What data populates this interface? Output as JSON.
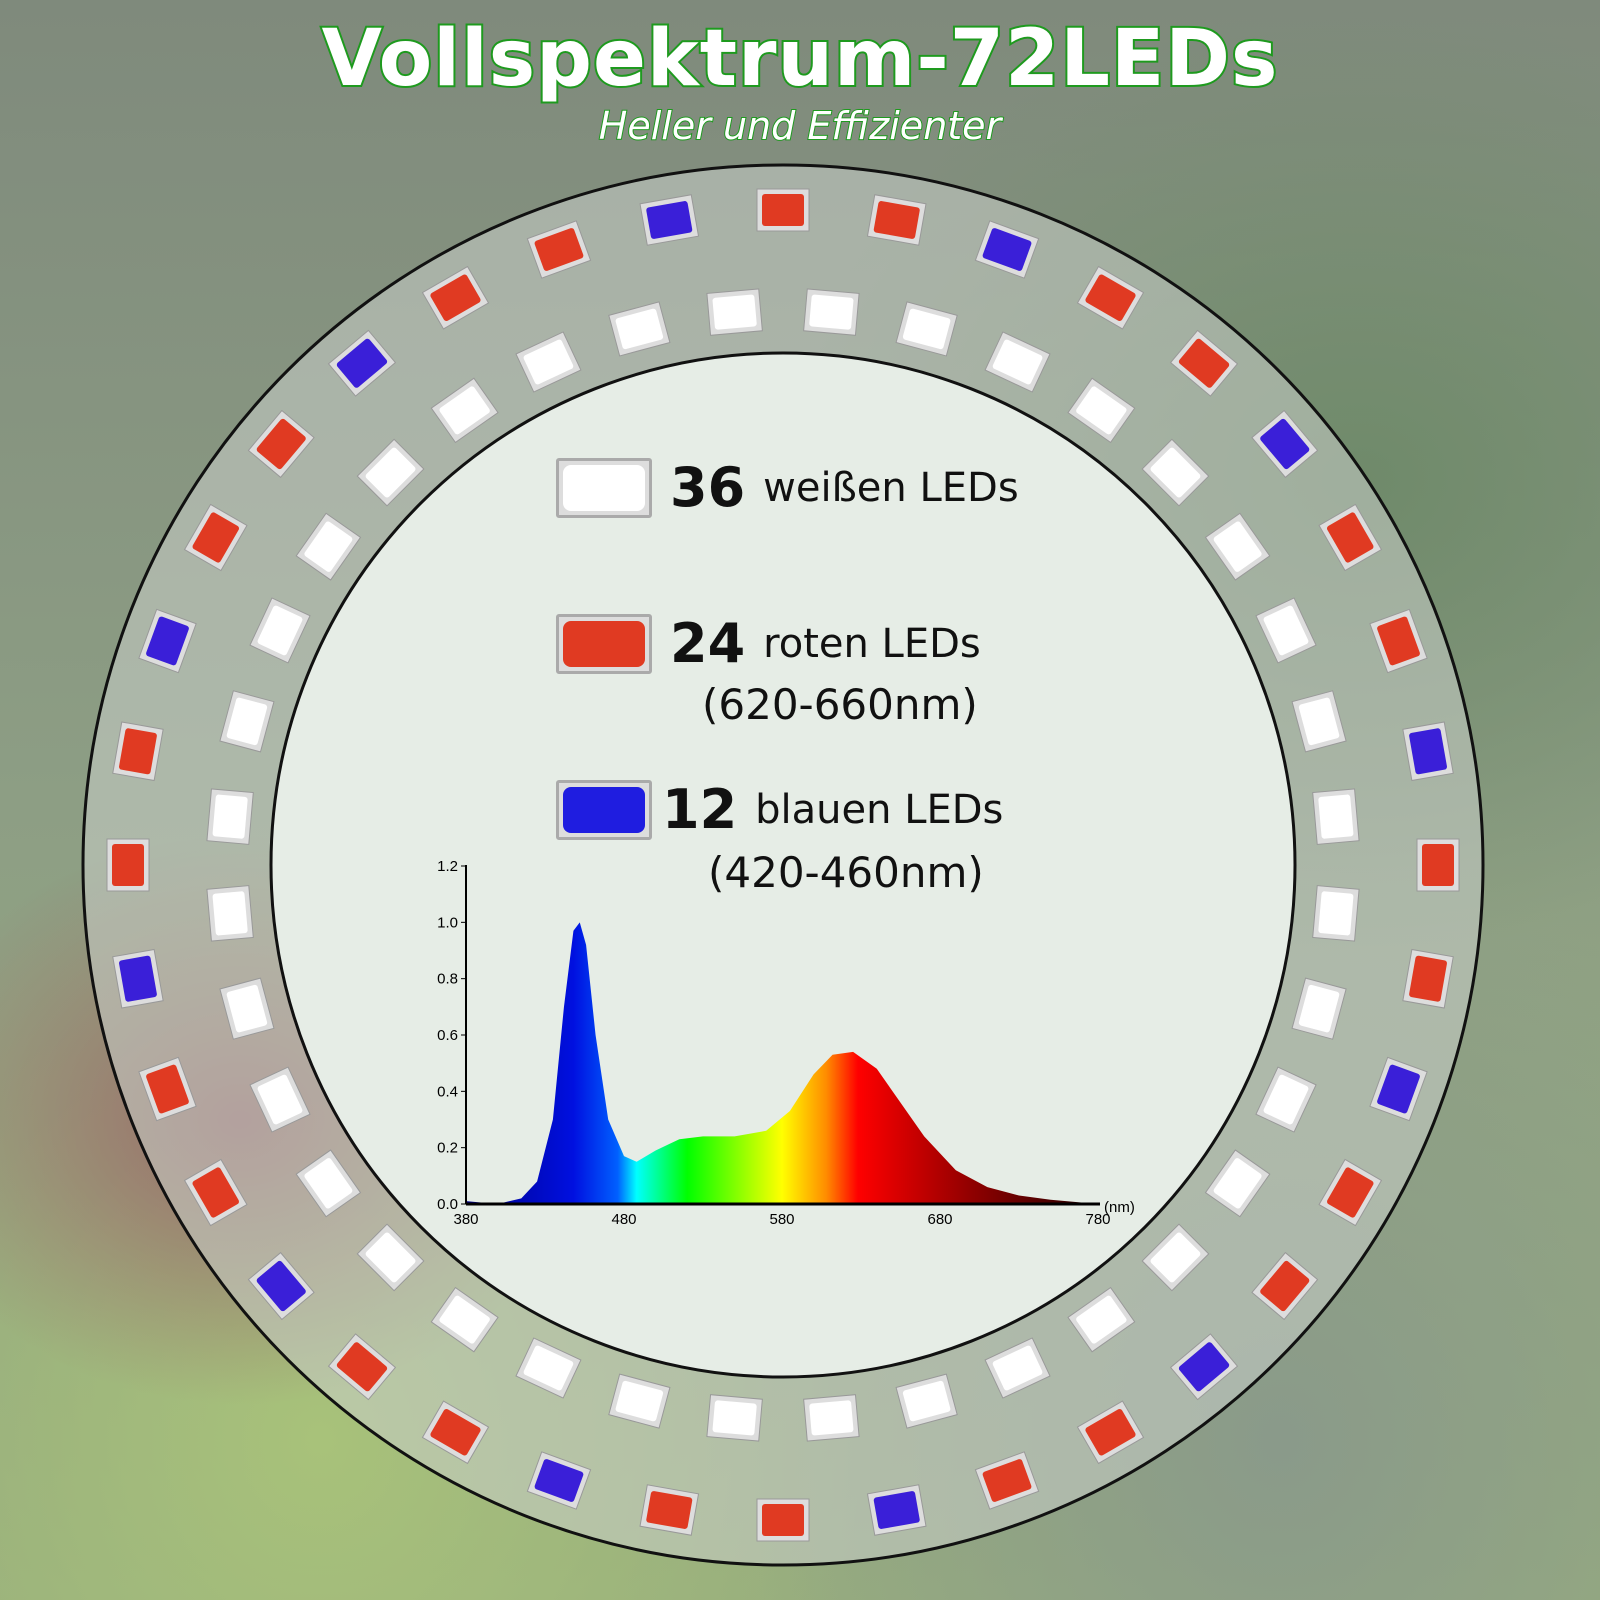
{
  "header": {
    "title": "Vollspektrum-72LEDs",
    "subtitle": "Heller und Effizienter"
  },
  "legend": [
    {
      "count": "36",
      "label": "weißen LEDs",
      "color": "#ffffff"
    },
    {
      "count": "24",
      "label": "roten LEDs",
      "range": "(620-660nm)",
      "color": "#e03a22"
    },
    {
      "count": "12",
      "label": "blauen LEDs",
      "range": "(420-460nm)",
      "color": "#1f1de0"
    }
  ],
  "ring_colors": {
    "red": "#e03a22",
    "blue": "#3a1fd8",
    "white": "#ffffff"
  },
  "chart_data": {
    "type": "area",
    "xlabel": "(nm)",
    "xlim": [
      380,
      780
    ],
    "ylim": [
      0,
      1.2
    ],
    "xticks": [
      "380",
      "480",
      "580",
      "680",
      "780"
    ],
    "yticks": [
      "0.0",
      "0.2",
      "0.4",
      "0.6",
      "0.8",
      "1.0",
      "1.2"
    ],
    "x": [
      380,
      400,
      415,
      425,
      435,
      442,
      448,
      452,
      456,
      462,
      470,
      480,
      488,
      500,
      515,
      530,
      550,
      570,
      585,
      600,
      612,
      625,
      640,
      655,
      670,
      690,
      710,
      730,
      750,
      780
    ],
    "y": [
      0.01,
      0.0,
      0.02,
      0.08,
      0.3,
      0.7,
      0.97,
      1.0,
      0.92,
      0.6,
      0.3,
      0.17,
      0.15,
      0.19,
      0.23,
      0.24,
      0.24,
      0.26,
      0.33,
      0.46,
      0.53,
      0.54,
      0.48,
      0.36,
      0.24,
      0.12,
      0.06,
      0.03,
      0.015,
      0.0
    ]
  }
}
